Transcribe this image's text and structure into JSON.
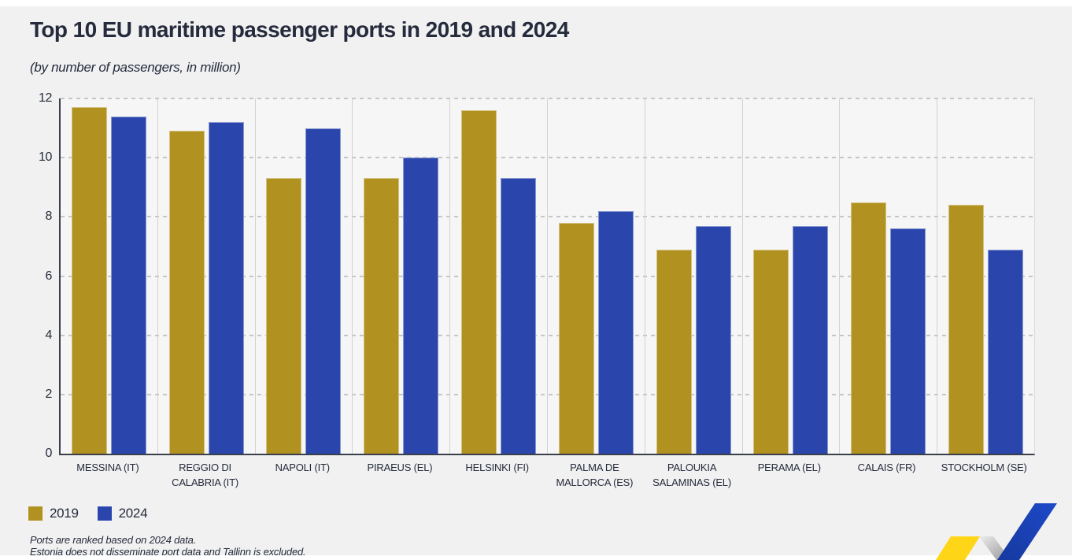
{
  "chart_data": {
    "type": "bar",
    "title": "Top 10 EU maritime passenger ports in 2019 and 2024",
    "subtitle": "(by number of passengers, in million)",
    "categories": [
      "MESSINA (IT)",
      "REGGIO DI CALABRIA (IT)",
      "NAPOLI (IT)",
      "PIRAEUS (EL)",
      "HELSINKI (FI)",
      "PALMA DE MALLORCA (ES)",
      "PALOUKIA SALAMINAS (EL)",
      "PERAMA (EL)",
      "CALAIS (FR)",
      "STOCKHOLM (SE)"
    ],
    "series": [
      {
        "name": "2019",
        "color": "#b19120",
        "values": [
          11.7,
          10.9,
          9.3,
          9.3,
          11.6,
          7.8,
          6.9,
          6.9,
          8.5,
          8.4
        ]
      },
      {
        "name": "2024",
        "color": "#2a46ac",
        "values": [
          11.4,
          11.2,
          11.0,
          10.0,
          9.3,
          8.2,
          7.7,
          7.7,
          7.6,
          6.9
        ]
      }
    ],
    "ylim": [
      0,
      12
    ],
    "y_ticks": [
      0,
      2,
      4,
      6,
      8,
      10,
      12
    ],
    "grid": "horizontal-dashed",
    "legend_position": "bottom-left"
  },
  "footnotes": [
    "Ports are ranked based on 2024 data.",
    "Estonia does not disseminate port data and Tallinn is excluded."
  ],
  "colors": {
    "background": "#f1f1f1",
    "plot_background": "#f6f6f6",
    "text": "#252b3c",
    "axis": "#3a3f4a",
    "gridline": "#c6c6c6",
    "separator": "#d2d2d2",
    "logo_yellow": "#ffd617",
    "logo_gray_light": "#e9e9e9",
    "logo_gray_dark": "#9a9a9a",
    "logo_blue": "#1e48c8",
    "logo_blue_dark": "#16399f"
  }
}
